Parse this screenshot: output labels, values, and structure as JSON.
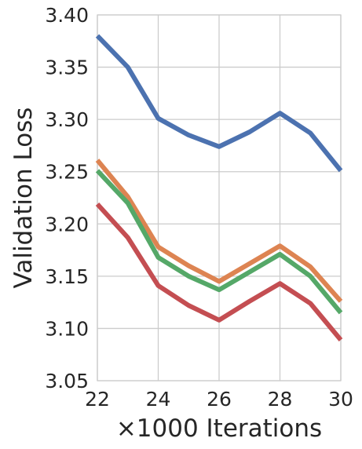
{
  "chart_data": {
    "type": "line",
    "title": "",
    "xlabel": "×1000 Iterations",
    "ylabel": "Validation Loss",
    "xlim": [
      22,
      30
    ],
    "ylim": [
      3.05,
      3.4
    ],
    "xticks": [
      22,
      24,
      26,
      28,
      30
    ],
    "xtick_labels": [
      "22",
      "24",
      "26",
      "28",
      "30"
    ],
    "yticks": [
      3.05,
      3.1,
      3.15,
      3.2,
      3.25,
      3.3,
      3.35,
      3.4
    ],
    "ytick_labels": [
      "3.05",
      "3.10",
      "3.15",
      "3.20",
      "3.25",
      "3.30",
      "3.35",
      "3.40"
    ],
    "grid": true,
    "legend": "none",
    "x": [
      22,
      23,
      24,
      25,
      26,
      27,
      28,
      29,
      30
    ],
    "series": [
      {
        "color": "#4c72b0",
        "values": [
          3.38,
          3.35,
          3.301,
          3.285,
          3.274,
          3.288,
          3.306,
          3.287,
          3.251
        ]
      },
      {
        "color": "#dd8452",
        "values": [
          3.261,
          3.226,
          3.178,
          3.16,
          3.145,
          3.162,
          3.179,
          3.159,
          3.126
        ]
      },
      {
        "color": "#55a868",
        "values": [
          3.251,
          3.22,
          3.168,
          3.15,
          3.137,
          3.154,
          3.171,
          3.15,
          3.115
        ]
      },
      {
        "color": "#c44e52",
        "values": [
          3.219,
          3.187,
          3.141,
          3.122,
          3.108,
          3.126,
          3.143,
          3.124,
          3.089
        ]
      }
    ]
  }
}
